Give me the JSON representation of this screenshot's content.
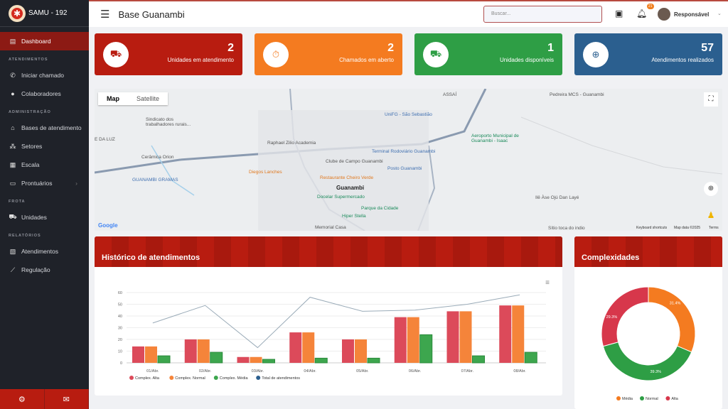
{
  "sidebar": {
    "brand": "SAMU - 192",
    "items": [
      {
        "label": "Dashboard",
        "icon": "monitor-icon"
      },
      {
        "section": "ATENDIMENTOS"
      },
      {
        "label": "Iniciar chamado",
        "icon": "phone-icon"
      },
      {
        "label": "Colaboradores",
        "icon": "user-icon"
      },
      {
        "section": "ADMINISTRAÇÃO"
      },
      {
        "label": "Bases de atendimento",
        "icon": "home-icon"
      },
      {
        "label": "Setores",
        "icon": "users-icon"
      },
      {
        "label": "Escala",
        "icon": "calendar-icon"
      },
      {
        "label": "Prontuários",
        "icon": "folder-icon"
      },
      {
        "section": "FROTA"
      },
      {
        "label": "Unidades",
        "icon": "ambulance-icon"
      },
      {
        "section": "RELATÓRIOS"
      },
      {
        "label": "Atendimentos",
        "icon": "document-icon"
      },
      {
        "label": "Regulação",
        "icon": "chart-line-icon"
      }
    ]
  },
  "header": {
    "title": "Base Guanambi",
    "search_placeholder": "Buscar...",
    "notifications": "21",
    "user": "Responsável"
  },
  "cards": [
    {
      "value": "2",
      "label": "Unidades em atendimento",
      "color": "#b81c10"
    },
    {
      "value": "2",
      "label": "Chamados em aberto",
      "color": "#f47b20"
    },
    {
      "value": "1",
      "label": "Unidades disponíveis",
      "color": "#2e9e45"
    },
    {
      "value": "57",
      "label": "Atendimentos realizados",
      "color": "#2b5f8f"
    }
  ],
  "map": {
    "type_map": "Map",
    "type_satellite": "Satellite",
    "city": "Guanambi",
    "attribution_google": "Google",
    "shortcuts": "Keyboard shortcuts",
    "map_data": "Map data ©2025",
    "terms": "Terms",
    "labels": [
      "ASSAÍ",
      "Pedreira MCS - Guanambi",
      "UniFG - São Sebastião",
      "Sindicato dos trabalhadores rurais...",
      "Raphael Zilio Academia",
      "Aeroporto Municipal de Guanambi - Isaac",
      "Cerâmica Orion",
      "Terminal Rodoviário Guanambi",
      "Clube de Campo Guanambi",
      "Posto Guanambi",
      "Diegos Lanches",
      "Restaurante Cheiro Verde",
      "GUANAMBI GRAMAS",
      "Docelar Supermercado",
      "Ilê Àse Ojú Dan Layé",
      "Hiper Stella",
      "Parque da Cidade",
      "Memorial Casa",
      "Sítio toca do indio",
      "E DA LUZ"
    ]
  },
  "history": {
    "title": "Histórico de atendimentos"
  },
  "complex": {
    "title": "Complexidades"
  },
  "chart_data": [
    {
      "type": "bar",
      "title": "Histórico de atendimentos",
      "categories": [
        "01/Abr.",
        "02/Abr.",
        "03/Abr.",
        "04/Abr.",
        "05/Abr.",
        "06/Abr.",
        "07/Abr.",
        "08/Abr."
      ],
      "ylim": [
        0,
        60
      ],
      "yticks": [
        "0",
        "10",
        "20",
        "30",
        "40",
        "50",
        "60"
      ],
      "series": [
        {
          "name": "Complex. Alta",
          "type": "bar",
          "color": "#dc4a5a",
          "values": [
            14,
            20,
            5,
            26,
            20,
            39,
            44,
            49
          ]
        },
        {
          "name": "Complex. Normal",
          "type": "bar",
          "color": "#f5843a",
          "values": [
            14,
            20,
            5,
            26,
            20,
            39,
            44,
            49
          ]
        },
        {
          "name": "Complex. Média",
          "type": "bar",
          "color": "#3da64e",
          "values": [
            6,
            9,
            3,
            4,
            4,
            24,
            6,
            9
          ]
        },
        {
          "name": "Total de atendimentos",
          "type": "line",
          "color": "#2b5f8f",
          "values": [
            34,
            49,
            13,
            56,
            44,
            45,
            50,
            58
          ]
        }
      ]
    },
    {
      "type": "pie",
      "title": "Complexidades",
      "slices": [
        {
          "name": "Média",
          "value": 31.4,
          "label": "31.4%",
          "color": "#f47b20"
        },
        {
          "name": "Normal",
          "value": 39.3,
          "label": "39.3%",
          "color": "#2e9e45"
        },
        {
          "name": "Alta",
          "value": 29.3,
          "label": "29.3%",
          "color": "#d7374b"
        }
      ]
    }
  ]
}
